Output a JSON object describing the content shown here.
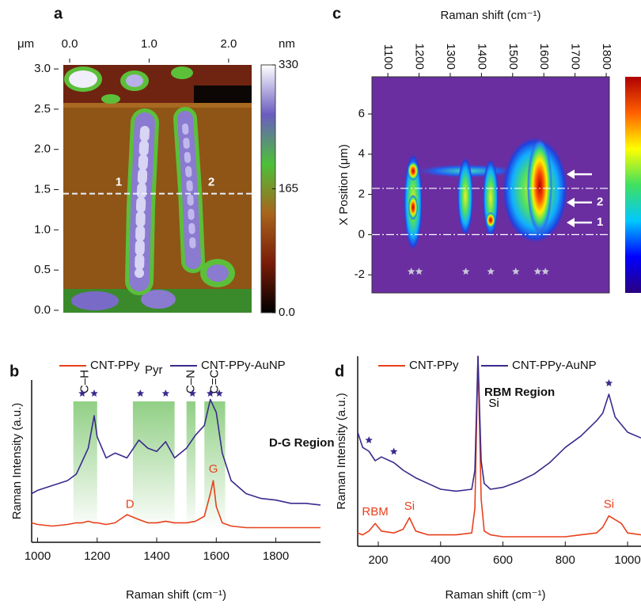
{
  "chart_data": [
    {
      "type": "image",
      "panel": "a",
      "x_unit": "μm",
      "colorbar_label": "nm",
      "xlim": [
        -0.08,
        2.29
      ],
      "xticks": [
        {
          "value": 0,
          "label": "0.0"
        },
        {
          "value": 1,
          "label": "1.0"
        },
        {
          "value": 2,
          "label": "2.0"
        }
      ],
      "ylim": [
        -0.03,
        3.05
      ],
      "yticks": [
        {
          "value": 0,
          "label": "0.0"
        },
        0.5,
        {
          "value": 1,
          "label": "1.0"
        },
        1.5,
        {
          "value": 2,
          "label": "2.0"
        },
        2.5,
        {
          "value": 3,
          "label": "3.0"
        }
      ],
      "colorbar_lim": [
        0,
        330
      ],
      "colorbar_ticks": [
        330,
        165,
        {
          "value": 0,
          "label": "0.0"
        }
      ],
      "colorbar_colors": [
        "#000000",
        "#7a1c08",
        "#a8641c",
        "#4cc038",
        "#6a5cc0",
        "#ffffff"
      ],
      "line_y": 1.45,
      "line_labels": [
        "1",
        "2"
      ]
    },
    {
      "type": "line",
      "panel": "b",
      "xlabel": "Raman shift (cm⁻¹)",
      "ylabel": "Raman Intensity (a.u.)",
      "xlim": [
        980,
        1950
      ],
      "xticks": [
        1000,
        1200,
        1400,
        1600,
        1800
      ],
      "ylim": [
        0,
        100
      ],
      "x": [
        980,
        1000,
        1050,
        1100,
        1130,
        1150,
        1170,
        1190,
        1200,
        1230,
        1260,
        1300,
        1340,
        1370,
        1400,
        1430,
        1460,
        1500,
        1530,
        1560,
        1580,
        1590,
        1600,
        1620,
        1650,
        1700,
        1750,
        1800,
        1850,
        1900,
        1950
      ],
      "series": [
        {
          "name": "CNT-PPy",
          "color": "#e8401c",
          "values": [
            12,
            11,
            10,
            11,
            12,
            12,
            13,
            12,
            12,
            11,
            12,
            17,
            14,
            12,
            12,
            13,
            12,
            12,
            13,
            16,
            30,
            38,
            22,
            12,
            10,
            9,
            9,
            9,
            9,
            9,
            9
          ]
        },
        {
          "name": "CNT-PPy-AuNP",
          "color": "#3a2a8c",
          "values": [
            30,
            32,
            35,
            38,
            42,
            50,
            58,
            78,
            65,
            52,
            55,
            52,
            63,
            58,
            56,
            62,
            52,
            58,
            66,
            72,
            88,
            84,
            80,
            55,
            38,
            30,
            27,
            26,
            24,
            24,
            23
          ]
        }
      ],
      "bands": [
        {
          "label": "C–H",
          "range": [
            1120,
            1200
          ],
          "vertical": true
        },
        {
          "label": "Pyr",
          "range": [
            1320,
            1460
          ],
          "vertical": false
        },
        {
          "label": "C–N",
          "range": [
            1500,
            1530
          ],
          "vertical": true
        },
        {
          "label": "C=C",
          "range": [
            1560,
            1630
          ],
          "vertical": true
        }
      ],
      "band_color": "#6cbf5c",
      "peak_markers": [
        1150,
        1190,
        1345,
        1430,
        1520,
        1580,
        1610
      ],
      "marker_color": "#3a2a8c",
      "annotations": [
        {
          "text": "D",
          "x": 1310,
          "color": "#e8401c"
        },
        {
          "text": "G",
          "x": 1590,
          "color": "#e8401c"
        }
      ],
      "region_label": "D-G Region"
    },
    {
      "type": "heatmap",
      "panel": "c",
      "xlabel": "Raman shift (cm⁻¹)",
      "ylabel": "X Position (μm)",
      "xlim": [
        1049,
        1810
      ],
      "xticks": [
        1100,
        1200,
        1300,
        1400,
        1500,
        1600,
        1700,
        1800
      ],
      "ylim": [
        -2.9,
        7.85
      ],
      "yticks": [
        -2,
        0,
        2,
        4,
        6
      ],
      "lines_y": [
        2.3,
        0
      ],
      "arrows": [
        {
          "y": 3.0
        },
        {
          "y": 1.6,
          "label": "2"
        },
        {
          "y": 0.6,
          "label": "1"
        }
      ],
      "peak_markers": [
        1175,
        1200,
        1350,
        1430,
        1510,
        1580,
        1605
      ],
      "marker_color": "#c8c8d8",
      "colorbar_colors": [
        "#2a0080",
        "#0000ff",
        "#00c8ff",
        "#40e060",
        "#ffff00",
        "#ff6000",
        "#b00000"
      ]
    },
    {
      "type": "line",
      "panel": "d",
      "xlabel": "Raman shift (cm⁻¹)",
      "ylabel": "Raman Intensity (a.u.)",
      "xlim": [
        134,
        1043
      ],
      "xticks": [
        200,
        400,
        600,
        800,
        1000
      ],
      "ylim": [
        0,
        100
      ],
      "x": [
        134,
        150,
        170,
        190,
        210,
        250,
        280,
        300,
        320,
        360,
        400,
        450,
        500,
        510,
        520,
        530,
        540,
        560,
        600,
        650,
        700,
        750,
        800,
        850,
        900,
        920,
        940,
        960,
        980,
        1000,
        1043
      ],
      "series": [
        {
          "name": "CNT-PPy",
          "color": "#e8401c",
          "values": [
            7,
            6,
            8,
            12,
            8,
            7,
            9,
            15,
            8,
            6,
            6,
            6,
            7,
            20,
            100,
            25,
            8,
            6,
            5,
            5,
            5,
            5,
            5,
            6,
            7,
            10,
            16,
            14,
            12,
            7,
            6
          ]
        },
        {
          "name": "CNT-PPy-AuNP",
          "color": "#3a2a8c",
          "values": [
            60,
            52,
            50,
            45,
            47,
            44,
            40,
            38,
            36,
            33,
            30,
            29,
            30,
            40,
            100,
            45,
            33,
            30,
            31,
            34,
            38,
            44,
            52,
            58,
            66,
            70,
            80,
            68,
            64,
            60,
            57
          ]
        }
      ],
      "peak_markers": [
        170,
        250,
        940
      ],
      "marker_color": "#3a2a8c",
      "annotations": [
        {
          "text": "RBM",
          "x": 190,
          "color": "#e8401c"
        },
        {
          "text": "Si",
          "x": 300,
          "color": "#e8401c"
        },
        {
          "text": "Si",
          "x": 520,
          "color": "#000000"
        },
        {
          "text": "Si",
          "x": 940,
          "color": "#e8401c"
        }
      ],
      "region_label": "RBM Region"
    }
  ]
}
